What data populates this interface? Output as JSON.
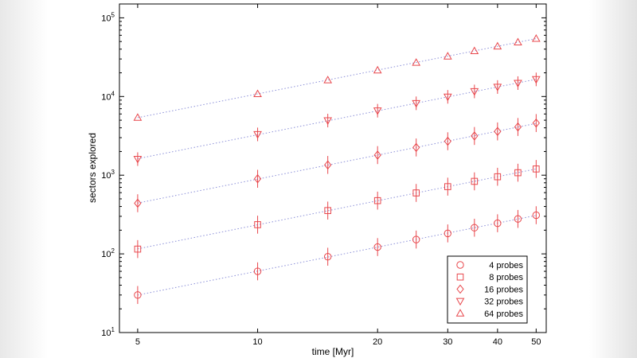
{
  "chart_data": {
    "type": "scatter",
    "xlabel": "time [Myr]",
    "ylabel": "sectors explored",
    "xscale": "log",
    "yscale": "log",
    "xlim": [
      4.5,
      53
    ],
    "ylim": [
      10,
      150000
    ],
    "grid": false,
    "legend_position": "bottom-right",
    "marker_color": "#e8474c",
    "fit_line_color": "#8b8fd8",
    "xticks": [
      5,
      10,
      20,
      30,
      40,
      50
    ],
    "xtick_labels": [
      "5",
      "10",
      "20",
      "30",
      "40",
      "50"
    ],
    "yticks": [
      10,
      100,
      1000,
      10000,
      100000
    ],
    "ytick_base": "10",
    "ytick_exponents": [
      "1",
      "2",
      "3",
      "4",
      "5"
    ],
    "series": [
      {
        "name": "4 probes",
        "marker": "circle",
        "x": [
          5,
          10,
          15,
          20,
          25,
          30,
          35,
          40,
          45,
          50
        ],
        "y": [
          30,
          60,
          92,
          122,
          152,
          182,
          215,
          245,
          278,
          310
        ],
        "error_factor": 1.3
      },
      {
        "name": "8 probes",
        "marker": "square",
        "x": [
          5,
          10,
          15,
          20,
          25,
          30,
          35,
          40,
          45,
          50
        ],
        "y": [
          115,
          235,
          355,
          475,
          595,
          715,
          835,
          955,
          1075,
          1200
        ],
        "error_factor": 1.3
      },
      {
        "name": "16 probes",
        "marker": "diamond",
        "x": [
          5,
          10,
          15,
          20,
          25,
          30,
          35,
          40,
          45,
          50
        ],
        "y": [
          440,
          900,
          1350,
          1800,
          2250,
          2700,
          3150,
          3600,
          4100,
          4600
        ],
        "error_factor": 1.3
      },
      {
        "name": "32 probes",
        "marker": "triangle-down",
        "x": [
          5,
          10,
          15,
          20,
          25,
          30,
          35,
          40,
          45,
          50
        ],
        "y": [
          1600,
          3300,
          4950,
          6600,
          8200,
          9900,
          11600,
          13200,
          14800,
          16500
        ],
        "error_factor": 1.22
      },
      {
        "name": "64 probes",
        "marker": "triangle-up",
        "x": [
          5,
          10,
          15,
          20,
          25,
          30,
          35,
          40,
          45,
          50
        ],
        "y": [
          5400,
          10800,
          16200,
          21600,
          27000,
          32500,
          38000,
          43500,
          49000,
          54500
        ],
        "error_factor": 1.0
      }
    ]
  }
}
